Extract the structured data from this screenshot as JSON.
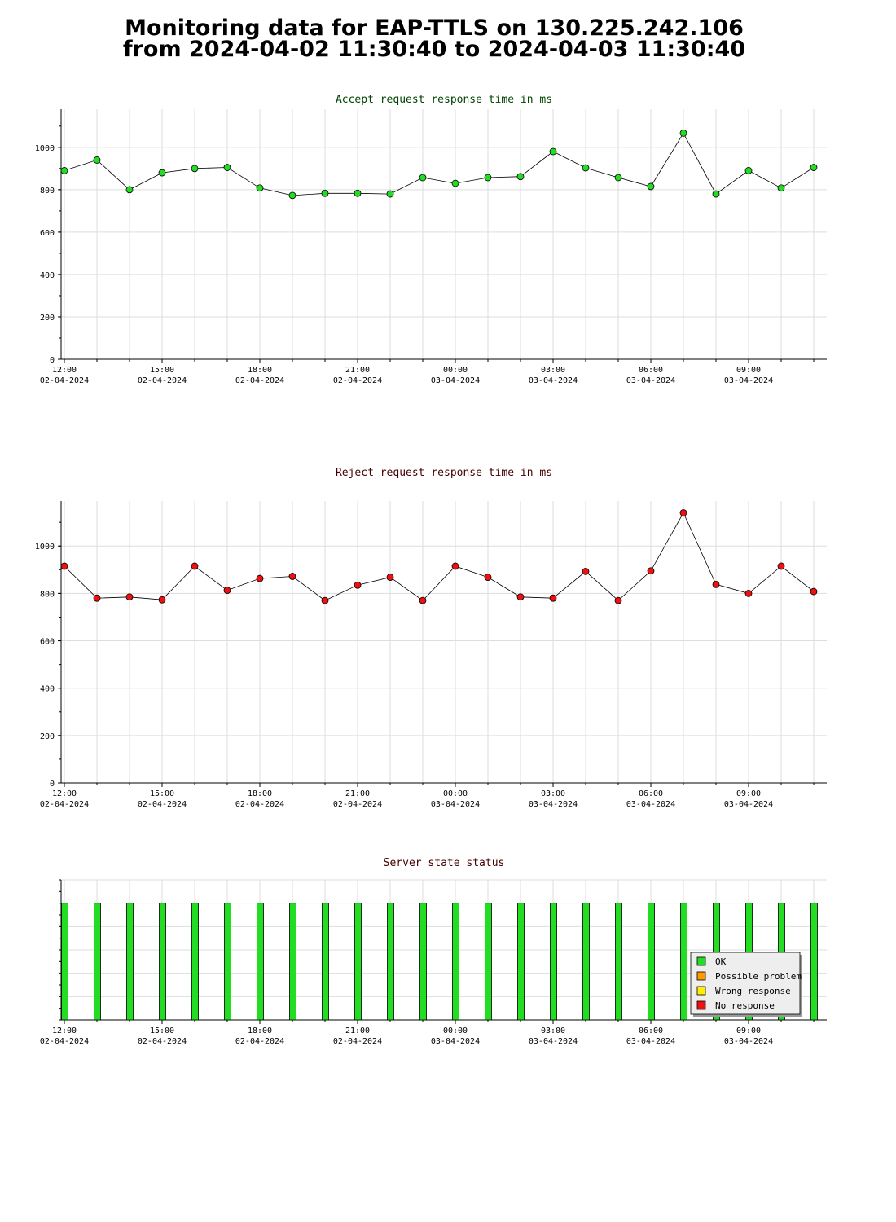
{
  "page": {
    "title_line1": "Monitoring data for EAP-TTLS on 130.225.242.106",
    "title_line2": "from 2024-04-02 11:30:40 to 2024-04-03 11:30:40"
  },
  "colors": {
    "accept_title": "#004400",
    "reject_title": "#440000",
    "status_title": "#440000",
    "accept_point": "#22dd22",
    "reject_point": "#ee1111",
    "ok": "#22dd22",
    "possible_problem": "#ff9900",
    "wrong_response": "#ffee00",
    "no_response": "#ee1111",
    "grid": "#dddddd"
  },
  "time_axis": {
    "ticks": [
      {
        "hour": 12,
        "time": "12:00",
        "date": "02-04-2024"
      },
      {
        "hour": 15,
        "time": "15:00",
        "date": "02-04-2024"
      },
      {
        "hour": 18,
        "time": "18:00",
        "date": "02-04-2024"
      },
      {
        "hour": 21,
        "time": "21:00",
        "date": "02-04-2024"
      },
      {
        "hour": 24,
        "time": "00:00",
        "date": "03-04-2024"
      },
      {
        "hour": 27,
        "time": "03:00",
        "date": "03-04-2024"
      },
      {
        "hour": 30,
        "time": "06:00",
        "date": "03-04-2024"
      },
      {
        "hour": 33,
        "time": "09:00",
        "date": "03-04-2024"
      }
    ]
  },
  "chart_data": [
    {
      "type": "line",
      "title": "Accept request response time in ms",
      "x_unit": "hours from 2024-04-02 00:00",
      "x": [
        12,
        13,
        14,
        15,
        16,
        17,
        18,
        19,
        20,
        21,
        22,
        23,
        24,
        25,
        26,
        27,
        28,
        29,
        30,
        31,
        32,
        33,
        34,
        35
      ],
      "values": [
        890,
        940,
        800,
        880,
        900,
        905,
        808,
        773,
        783,
        783,
        780,
        857,
        830,
        857,
        862,
        980,
        903,
        857,
        815,
        1067,
        780,
        890,
        808,
        905
      ],
      "ylim": [
        0,
        1180
      ],
      "yticks": [
        0,
        200,
        400,
        600,
        800,
        1000
      ],
      "xlim": [
        11.9,
        35.4
      ],
      "grid": true
    },
    {
      "type": "line",
      "title": "Reject request response time in ms",
      "x_unit": "hours from 2024-04-02 00:00",
      "x": [
        12,
        13,
        14,
        15,
        16,
        17,
        18,
        19,
        20,
        21,
        22,
        23,
        24,
        25,
        26,
        27,
        28,
        29,
        30,
        31,
        32,
        33,
        34,
        35
      ],
      "values": [
        915,
        780,
        785,
        773,
        915,
        813,
        863,
        872,
        770,
        835,
        868,
        770,
        915,
        868,
        785,
        780,
        893,
        770,
        895,
        1140,
        838,
        800,
        915,
        808
      ],
      "ylim": [
        0,
        1190
      ],
      "yticks": [
        0,
        200,
        400,
        600,
        800,
        1000
      ],
      "xlim": [
        11.9,
        35.4
      ],
      "grid": true
    },
    {
      "type": "bar",
      "title": "Server state status",
      "x_unit": "hours from 2024-04-02 00:00",
      "x": [
        12,
        13,
        14,
        15,
        16,
        17,
        18,
        19,
        20,
        21,
        22,
        23,
        24,
        25,
        26,
        27,
        28,
        29,
        30,
        31,
        32,
        33,
        34,
        35
      ],
      "states": [
        "OK",
        "OK",
        "OK",
        "OK",
        "OK",
        "OK",
        "OK",
        "OK",
        "OK",
        "OK",
        "OK",
        "OK",
        "OK",
        "OK",
        "OK",
        "OK",
        "OK",
        "OK",
        "OK",
        "OK",
        "OK",
        "OK",
        "OK",
        "OK"
      ],
      "xlim": [
        11.9,
        35.4
      ],
      "legend": {
        "placement": "bottom-right",
        "entries": [
          {
            "label": "OK",
            "color": "#22dd22"
          },
          {
            "label": "Possible problem",
            "color": "#ff9900"
          },
          {
            "label": "Wrong response",
            "color": "#ffee00"
          },
          {
            "label": "No response",
            "color": "#ee1111"
          }
        ]
      },
      "grid": true
    }
  ]
}
